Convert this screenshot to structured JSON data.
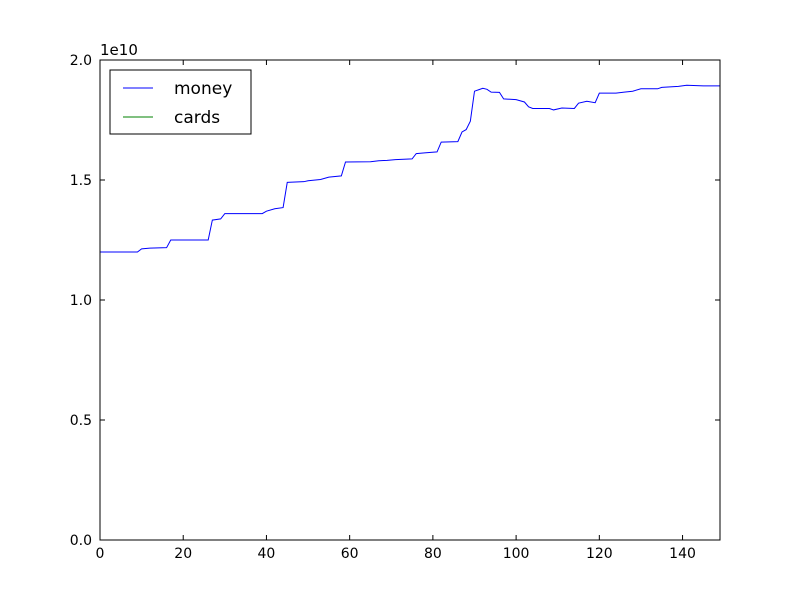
{
  "chart_data": {
    "type": "line",
    "title": "",
    "xlabel": "",
    "ylabel": "",
    "xlim": [
      0,
      149
    ],
    "ylim": [
      0,
      20000000000
    ],
    "x_ticks": [
      0,
      20,
      40,
      60,
      80,
      100,
      120,
      140
    ],
    "x_tick_labels": [
      "0",
      "20",
      "40",
      "60",
      "80",
      "100",
      "120",
      "140"
    ],
    "y_ticks": [
      0,
      5000000000,
      10000000000,
      15000000000,
      20000000000
    ],
    "y_tick_labels": [
      "0.0",
      "0.5",
      "1.0",
      "1.5",
      "2.0"
    ],
    "y_multiplier": "1e10",
    "grid": false,
    "legend_position": "upper-left",
    "series": [
      {
        "name": "money",
        "color": "#0000ff",
        "points": [
          [
            0,
            12000000000
          ],
          [
            9,
            12000000000
          ],
          [
            10,
            12130000000
          ],
          [
            12,
            12160000000
          ],
          [
            16,
            12180000000
          ],
          [
            17,
            12500000000
          ],
          [
            26,
            12500000000
          ],
          [
            27,
            13330000000
          ],
          [
            29,
            13380000000
          ],
          [
            30,
            13600000000
          ],
          [
            39,
            13600000000
          ],
          [
            40,
            13700000000
          ],
          [
            42,
            13800000000
          ],
          [
            44,
            13850000000
          ],
          [
            45,
            14900000000
          ],
          [
            49,
            14930000000
          ],
          [
            50,
            14970000000
          ],
          [
            53,
            15020000000
          ],
          [
            55,
            15120000000
          ],
          [
            58,
            15170000000
          ],
          [
            59,
            15750000000
          ],
          [
            65,
            15760000000
          ],
          [
            67,
            15800000000
          ],
          [
            69,
            15820000000
          ],
          [
            71,
            15850000000
          ],
          [
            75,
            15880000000
          ],
          [
            76,
            16100000000
          ],
          [
            78,
            16130000000
          ],
          [
            81,
            16170000000
          ],
          [
            82,
            16580000000
          ],
          [
            86,
            16600000000
          ],
          [
            87,
            17000000000
          ],
          [
            88,
            17100000000
          ],
          [
            89,
            17450000000
          ],
          [
            90,
            18700000000
          ],
          [
            91,
            18760000000
          ],
          [
            92,
            18820000000
          ],
          [
            93,
            18780000000
          ],
          [
            94,
            18660000000
          ],
          [
            96,
            18650000000
          ],
          [
            97,
            18380000000
          ],
          [
            100,
            18350000000
          ],
          [
            102,
            18250000000
          ],
          [
            103,
            18050000000
          ],
          [
            104,
            17980000000
          ],
          [
            108,
            17980000000
          ],
          [
            109,
            17920000000
          ],
          [
            111,
            18000000000
          ],
          [
            114,
            17980000000
          ],
          [
            115,
            18200000000
          ],
          [
            117,
            18280000000
          ],
          [
            119,
            18220000000
          ],
          [
            120,
            18620000000
          ],
          [
            124,
            18620000000
          ],
          [
            126,
            18660000000
          ],
          [
            128,
            18700000000
          ],
          [
            130,
            18800000000
          ],
          [
            134,
            18800000000
          ],
          [
            135,
            18860000000
          ],
          [
            137,
            18880000000
          ],
          [
            139,
            18900000000
          ],
          [
            141,
            18950000000
          ],
          [
            145,
            18920000000
          ],
          [
            149,
            18920000000
          ]
        ]
      },
      {
        "name": "cards",
        "color": "#008000",
        "points": [
          [
            0,
            0
          ],
          [
            149,
            0
          ]
        ]
      }
    ]
  }
}
